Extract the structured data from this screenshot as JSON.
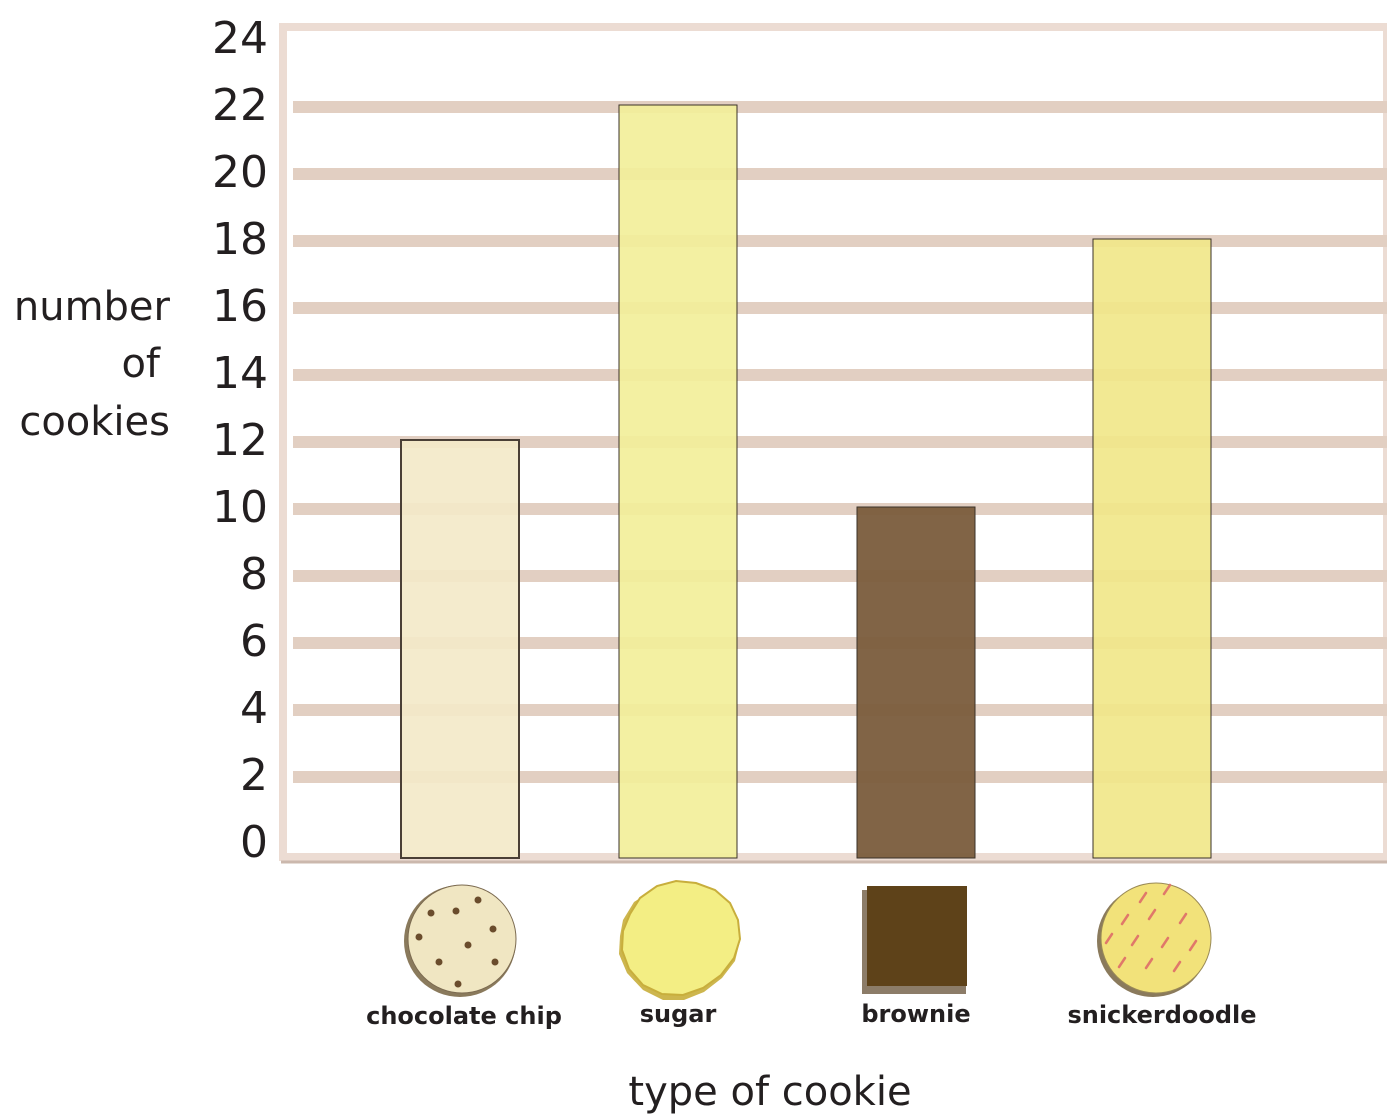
{
  "chart_data": {
    "type": "bar",
    "title": "",
    "ylabel_lines": [
      "number",
      "of",
      "cookies"
    ],
    "xlabel": "type of cookie",
    "categories": [
      "chocolate chip",
      "sugar",
      "brownie",
      "snickerdoodle"
    ],
    "values": [
      12,
      22,
      10,
      18
    ],
    "ylim": [
      0,
      24
    ],
    "yticks": [
      "0",
      "2",
      "4",
      "6",
      "8",
      "10",
      "12",
      "14",
      "16",
      "18",
      "20",
      "22",
      "24"
    ],
    "grid": true,
    "colors": {
      "bars": [
        "#f3e9c9",
        "#f2ef9a",
        "#7a5c3c",
        "#f1e78a"
      ],
      "gridline": "#e2cfc2",
      "frame": "#e8d8cf"
    },
    "icons": [
      "chocolate-chip-cookie-icon",
      "sugar-cookie-icon",
      "brownie-icon",
      "snickerdoodle-cookie-icon"
    ]
  }
}
